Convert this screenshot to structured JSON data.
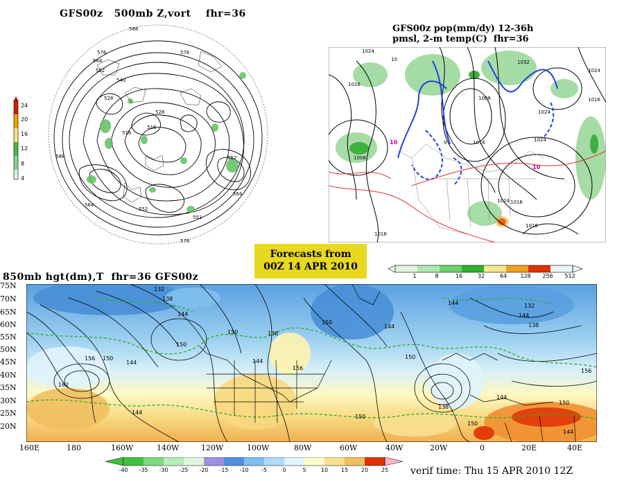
{
  "panel_polar": {
    "title": "GFS00z   500mb Z,vort    fhr=36",
    "contour_labels": [
      "588",
      "576",
      "564",
      "552",
      "540",
      "528",
      "516",
      "552",
      "576",
      "564",
      "552",
      "516",
      "528",
      "552",
      "564",
      "576",
      "588"
    ],
    "colorbar": {
      "levels": [
        "24",
        "20",
        "16",
        "12",
        "8",
        "4"
      ],
      "colors": [
        "#cc2200",
        "#f0a000",
        "#f4e08a",
        "#48b848",
        "#8cd08c",
        "#d8f0d8"
      ]
    }
  },
  "panel_na": {
    "title_line1": "GFS00z pop(mm/dy) 12-36h",
    "title_line2": "pmsl, 2-m temp(C)  fhr=36",
    "contour_labels": [
      "1024",
      "1016",
      "1008",
      "1016",
      "1024",
      "1032",
      "1024",
      "1016",
      "1024",
      "1016",
      "1024",
      "1016",
      "1008",
      "1016",
      "10",
      "0",
      "10",
      "10"
    ],
    "colorbar": {
      "levels": [
        "1",
        "8",
        "16",
        "32",
        "64",
        "128",
        "256",
        "512"
      ],
      "colors": [
        "#e0f4e0",
        "#b0e8b0",
        "#70d070",
        "#30b030",
        "#f4e890",
        "#f0a020",
        "#e03000",
        "#e8f8f8"
      ]
    }
  },
  "banner": {
    "line1": "Forecasts from",
    "line2": "00Z 14 APR 2010"
  },
  "panel_850": {
    "title": "850mb hgt(dm),T  fhr=36 GFS00z",
    "lat_labels": [
      "75N",
      "70N",
      "65N",
      "60N",
      "55N",
      "50N",
      "45N",
      "40N",
      "35N",
      "30N",
      "25N",
      "20N"
    ],
    "lon_labels": [
      "160E",
      "180",
      "160W",
      "140W",
      "120W",
      "100W",
      "80W",
      "60W",
      "40W",
      "20W",
      "0",
      "20E",
      "40E"
    ],
    "contour_labels": [
      "132",
      "138",
      "144",
      "150",
      "156",
      "162",
      "144",
      "150",
      "138",
      "144",
      "150",
      "156",
      "144",
      "144",
      "150",
      "150",
      "144",
      "132",
      "138",
      "144",
      "150",
      "156",
      "144",
      "138",
      "150",
      "144",
      "150"
    ],
    "colorbar": {
      "levels": [
        "-40",
        "-35",
        "-30",
        "-25",
        "-20",
        "-15",
        "-10",
        "-5",
        "0",
        "5",
        "10",
        "15",
        "20",
        "25"
      ],
      "colors": [
        "#40c040",
        "#80d880",
        "#b8ecb8",
        "#e0f4e0",
        "#a090e0",
        "#5090e0",
        "#80c0f0",
        "#b0dcf8",
        "#e0f4fc",
        "#fffccc",
        "#f8e090",
        "#f0c060",
        "#f09030",
        "#e03000",
        "#f8b8c8"
      ]
    }
  },
  "footer": {
    "verif": "verif time: Thu 15 APR 2010 12Z"
  }
}
